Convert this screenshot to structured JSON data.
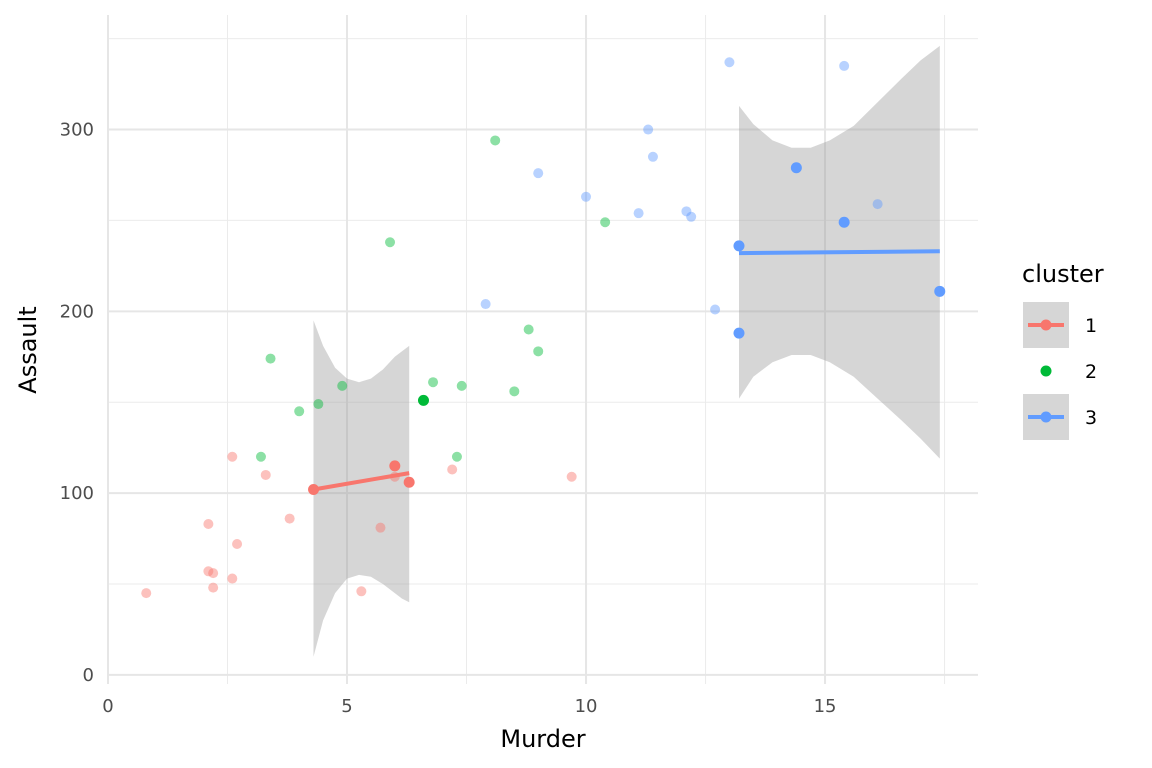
{
  "chart_data": {
    "type": "scatter",
    "xlabel": "Murder",
    "ylabel": "Assault",
    "xlim": [
      0,
      18.2
    ],
    "ylim": [
      -5,
      363
    ],
    "x_ticks": [
      0,
      5,
      10,
      15
    ],
    "x_tick_labels": [
      "0",
      "5",
      "10",
      "15"
    ],
    "y_ticks": [
      0,
      100,
      200,
      300
    ],
    "y_tick_labels": [
      "0",
      "100",
      "200",
      "300"
    ],
    "grid": true,
    "legend": {
      "title": "cluster",
      "position": "right",
      "entries": [
        {
          "label": "1",
          "color": "#F8766D",
          "style": "line-band"
        },
        {
          "label": "2",
          "color": "#00BA38",
          "style": "point"
        },
        {
          "label": "3",
          "color": "#619CFF",
          "style": "line-band"
        }
      ]
    },
    "series": [
      {
        "name": "1",
        "color": "#F8766D",
        "points": [
          [
            0.8,
            45
          ],
          [
            2.1,
            83
          ],
          [
            2.1,
            57
          ],
          [
            2.2,
            56
          ],
          [
            2.2,
            48
          ],
          [
            2.6,
            120
          ],
          [
            2.6,
            53
          ],
          [
            2.7,
            72
          ],
          [
            3.3,
            110
          ],
          [
            3.8,
            86
          ],
          [
            5.3,
            46
          ],
          [
            5.7,
            81
          ],
          [
            6.0,
            109
          ],
          [
            7.2,
            113
          ],
          [
            9.7,
            109
          ]
        ],
        "highlighted_points": [
          [
            4.3,
            102
          ],
          [
            6.0,
            115
          ],
          [
            6.3,
            106
          ]
        ],
        "trend": {
          "x": [
            4.3,
            6.3
          ],
          "y": [
            102,
            111
          ]
        },
        "band": {
          "x": [
            4.3,
            4.5,
            4.75,
            5.0,
            5.25,
            5.5,
            5.75,
            6.0,
            6.15,
            6.3
          ],
          "upper": [
            195,
            181,
            169,
            163,
            161,
            163,
            168,
            175,
            178,
            181
          ],
          "lower": [
            10,
            30,
            45,
            53,
            55,
            54,
            50,
            45,
            42,
            40
          ]
        }
      },
      {
        "name": "2",
        "color": "#00BA38",
        "points": [
          [
            3.2,
            120
          ],
          [
            3.4,
            174
          ],
          [
            4.0,
            145
          ],
          [
            4.4,
            149
          ],
          [
            4.9,
            159
          ],
          [
            5.9,
            238
          ],
          [
            6.8,
            161
          ],
          [
            7.3,
            120
          ],
          [
            7.4,
            159
          ],
          [
            8.1,
            294
          ],
          [
            8.5,
            156
          ],
          [
            8.8,
            190
          ],
          [
            9.0,
            178
          ],
          [
            10.4,
            249
          ]
        ],
        "highlighted_points": [
          [
            6.6,
            151
          ]
        ]
      },
      {
        "name": "3",
        "color": "#619CFF",
        "points": [
          [
            7.9,
            204
          ],
          [
            9.0,
            276
          ],
          [
            10.0,
            263
          ],
          [
            11.1,
            254
          ],
          [
            11.3,
            300
          ],
          [
            11.4,
            285
          ],
          [
            12.1,
            255
          ],
          [
            12.2,
            252
          ],
          [
            12.7,
            201
          ],
          [
            13.0,
            337
          ],
          [
            15.4,
            335
          ],
          [
            16.1,
            259
          ]
        ],
        "highlighted_points": [
          [
            13.2,
            236
          ],
          [
            13.2,
            188
          ],
          [
            14.4,
            279
          ],
          [
            15.4,
            249
          ],
          [
            17.4,
            211
          ]
        ],
        "trend": {
          "x": [
            13.2,
            17.4
          ],
          "y": [
            232,
            233
          ]
        },
        "band": {
          "x": [
            13.2,
            13.5,
            13.9,
            14.3,
            14.7,
            15.1,
            15.6,
            16.1,
            16.6,
            17.0,
            17.4
          ],
          "upper": [
            313,
            303,
            294,
            290,
            290,
            294,
            302,
            315,
            328,
            338,
            346
          ],
          "lower": [
            152,
            164,
            172,
            176,
            176,
            172,
            164,
            152,
            140,
            130,
            119
          ]
        }
      }
    ]
  }
}
